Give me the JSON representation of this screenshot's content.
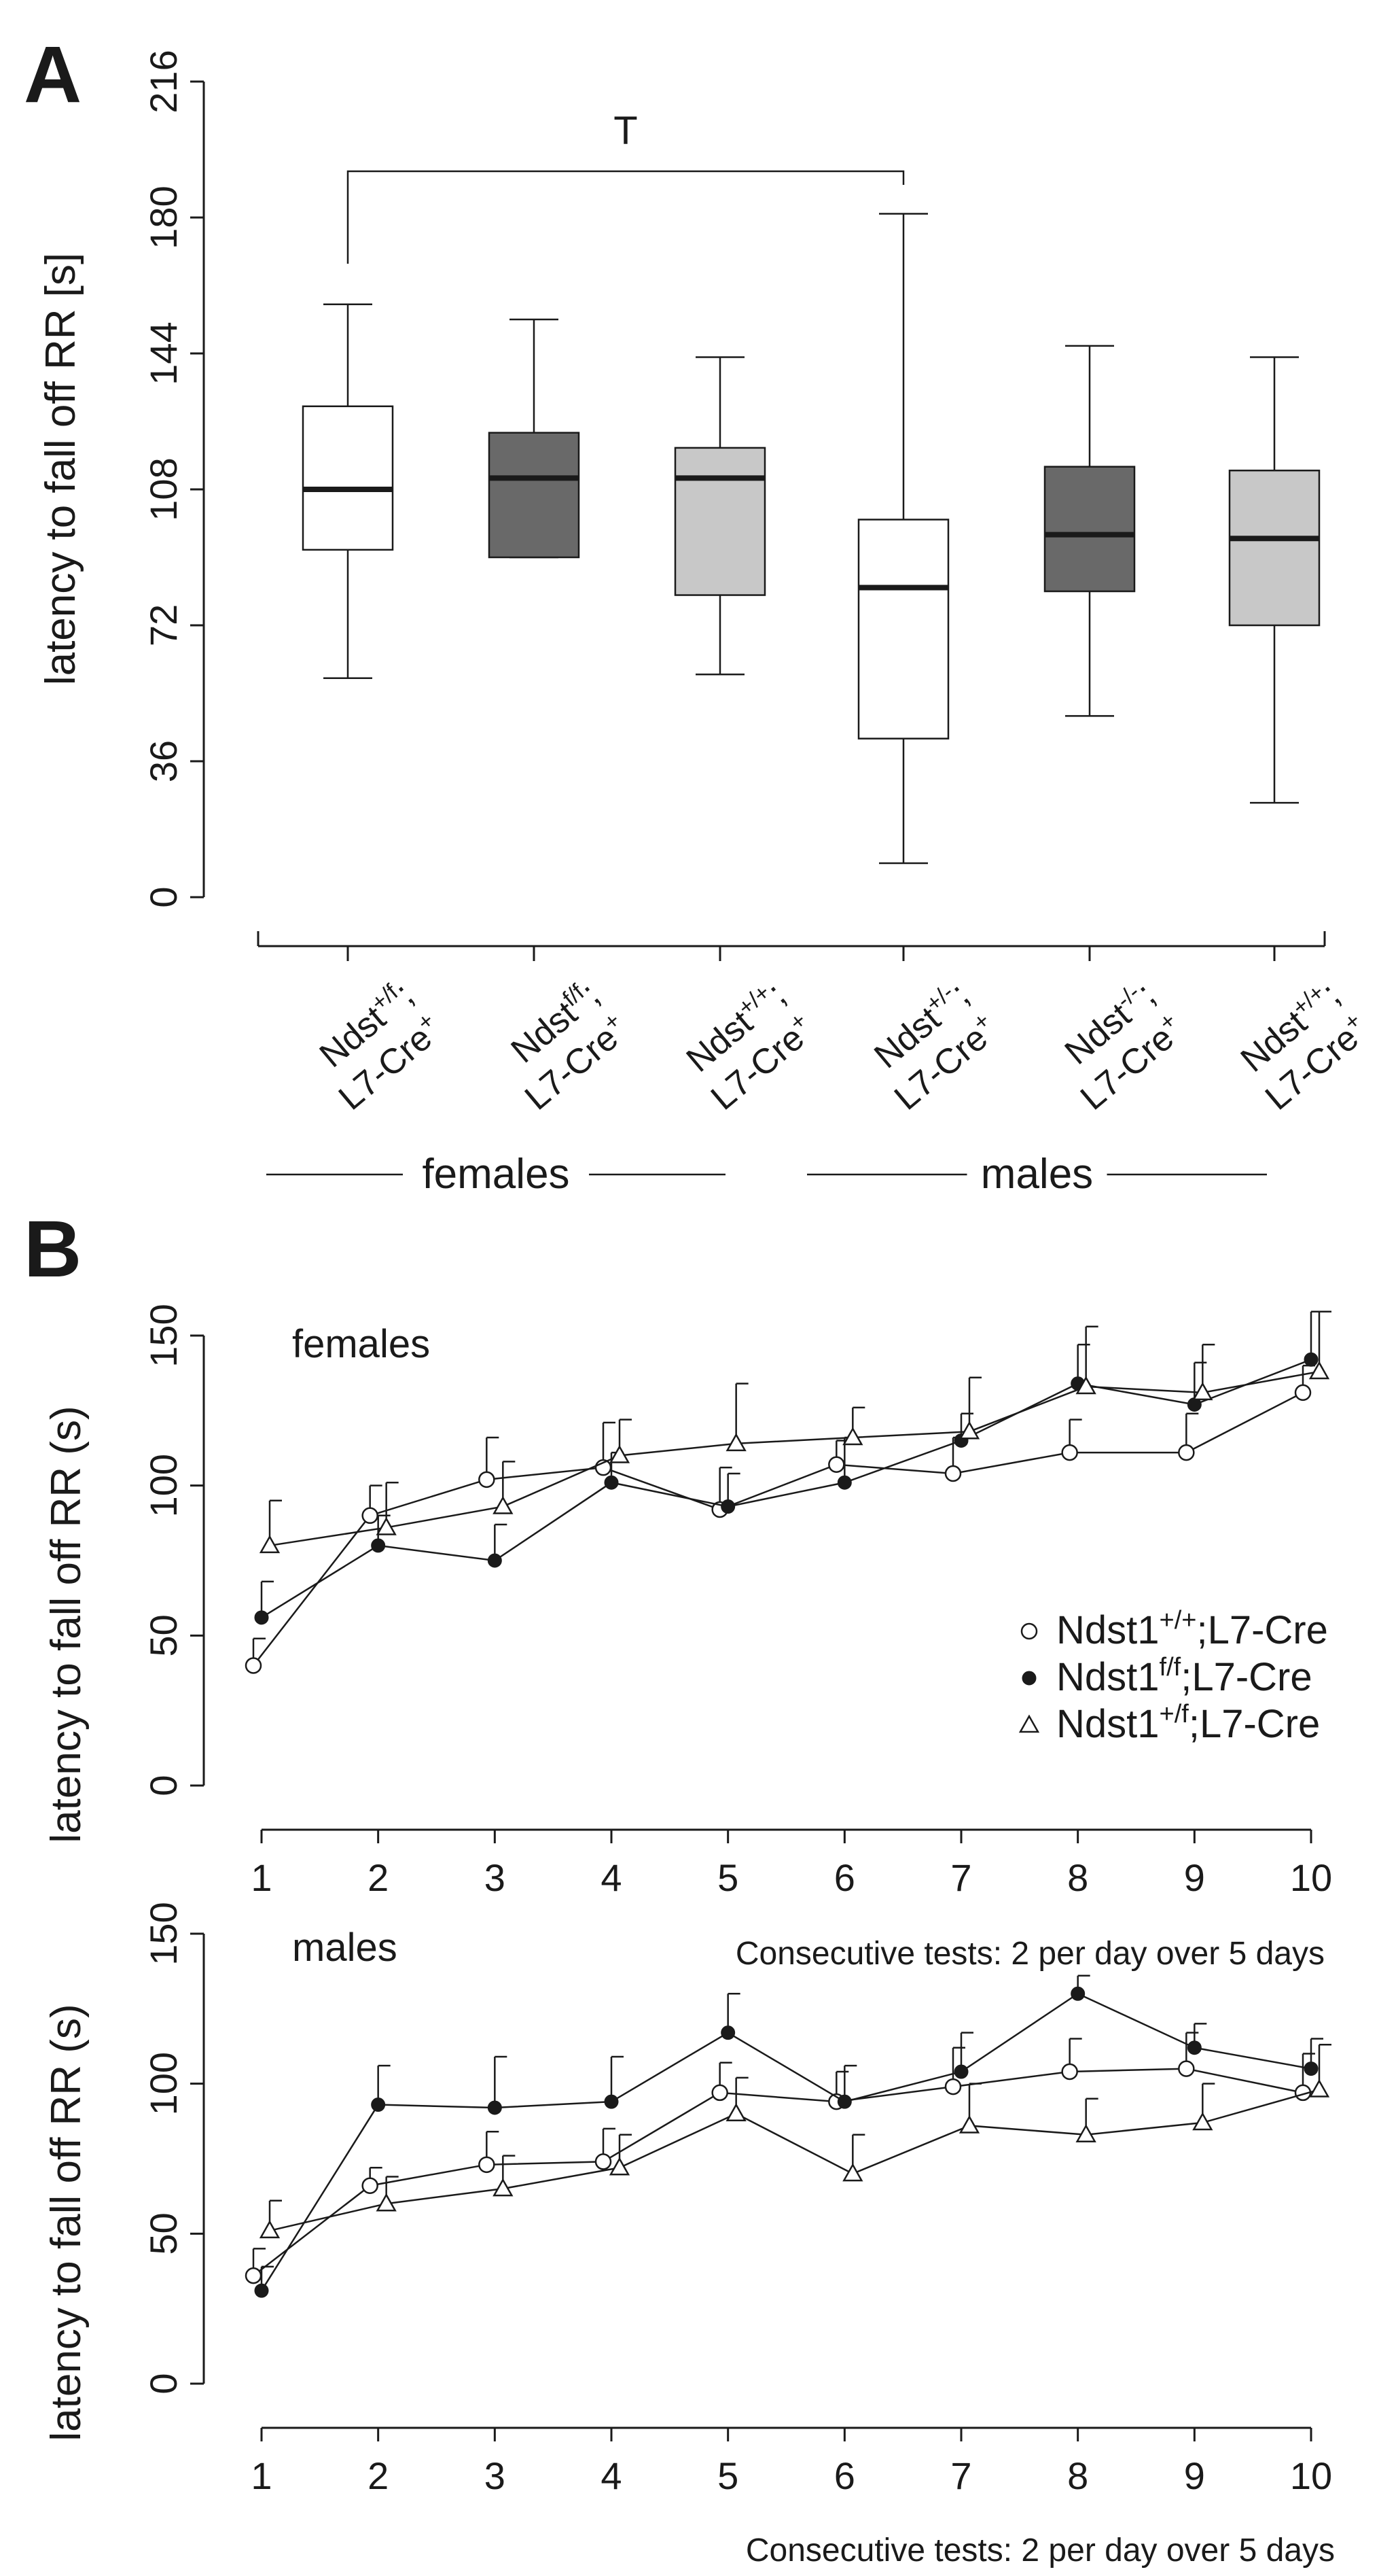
{
  "figure": {
    "panel_a_letter": "A",
    "panel_b_letter": "B"
  },
  "chart_data": [
    {
      "id": "panel-a",
      "type": "box",
      "ylabel": "latency to fall off RR [s]",
      "ylim": [
        0,
        216
      ],
      "yticks": [
        0,
        36,
        72,
        108,
        144,
        180,
        216
      ],
      "significance": {
        "label": "T",
        "between": [
          0,
          3
        ]
      },
      "groups": [
        {
          "label": "females",
          "members": [
            0,
            1,
            2
          ]
        },
        {
          "label": "males",
          "members": [
            3,
            4,
            5
          ]
        }
      ],
      "boxes": [
        {
          "line1_base": "Ndst",
          "line1_sup": "+/f",
          "line1_tail": ";",
          "line2_base": "L7-Cre",
          "line2_sup": "+",
          "fill": "#ffffff",
          "whisker_low": 58,
          "q1": 92,
          "median": 108,
          "q3": 130,
          "whisker_high": 157
        },
        {
          "line1_base": "Ndst",
          "line1_sup": "f/f",
          "line1_tail": ";",
          "line2_base": "L7-Cre",
          "line2_sup": "+",
          "fill": "#696969",
          "whisker_low": 90,
          "q1": 90,
          "median": 111,
          "q3": 123,
          "whisker_high": 153
        },
        {
          "line1_base": "Ndst",
          "line1_sup": "+/+",
          "line1_tail": ";",
          "line2_base": "L7-Cre",
          "line2_sup": "+",
          "fill": "#c8c8c8",
          "whisker_low": 59,
          "q1": 80,
          "median": 111,
          "q3": 119,
          "whisker_high": 143
        },
        {
          "line1_base": "Ndst",
          "line1_sup": "+/-",
          "line1_tail": ";",
          "line2_base": "L7-Cre",
          "line2_sup": "+",
          "fill": "#ffffff",
          "whisker_low": 9,
          "q1": 42,
          "median": 82,
          "q3": 100,
          "whisker_high": 181
        },
        {
          "line1_base": "Ndst",
          "line1_sup": "-/-",
          "line1_tail": ";",
          "line2_base": "L7-Cre",
          "line2_sup": "+",
          "fill": "#696969",
          "whisker_low": 48,
          "q1": 81,
          "median": 96,
          "q3": 114,
          "whisker_high": 146
        },
        {
          "line1_base": "Ndst",
          "line1_sup": "+/+",
          "line1_tail": ";",
          "line2_base": "L7-Cre",
          "line2_sup": "+",
          "fill": "#c8c8c8",
          "whisker_low": 25,
          "q1": 72,
          "median": 95,
          "q3": 113,
          "whisker_high": 143
        }
      ]
    },
    {
      "id": "panel-b-females",
      "type": "line",
      "title": "females",
      "xlabel": "Consecutive tests: 2 per day over 5 days",
      "ylabel": "latency to fall off RR (s)",
      "x": [
        1,
        2,
        3,
        4,
        5,
        6,
        7,
        8,
        9,
        10
      ],
      "ylim": [
        0,
        150
      ],
      "yticks": [
        0,
        50,
        100,
        150
      ],
      "series": [
        {
          "name_base": "Ndst1",
          "name_sup": "+/+",
          "name_tail": ";L7-Cre",
          "marker": "circle",
          "values": [
            40,
            90,
            102,
            106,
            92,
            107,
            104,
            111,
            111,
            131
          ],
          "errors": [
            9,
            10,
            14,
            15,
            14,
            8,
            12,
            11,
            13,
            9
          ]
        },
        {
          "name_base": "Ndst1",
          "name_sup": "f/f",
          "name_tail": ";L7-Cre",
          "marker": "filled",
          "values": [
            56,
            80,
            75,
            101,
            93,
            101,
            115,
            134,
            127,
            142
          ],
          "errors": [
            12,
            10,
            12,
            10,
            11,
            15,
            9,
            13,
            14,
            16
          ]
        },
        {
          "name_base": "Ndst1",
          "name_sup": "+/f",
          "name_tail": ";L7-Cre",
          "marker": "triangle",
          "values": [
            80,
            86,
            93,
            110,
            114,
            116,
            118,
            133,
            131,
            138
          ],
          "errors": [
            15,
            15,
            15,
            12,
            20,
            10,
            18,
            20,
            16,
            20
          ]
        }
      ]
    },
    {
      "id": "panel-b-males",
      "type": "line",
      "title": "males",
      "xlabel": "Consecutive tests: 2 per day over 5 days",
      "ylabel": "latency to fall off RR (s)",
      "x": [
        1,
        2,
        3,
        4,
        5,
        6,
        7,
        8,
        9,
        10
      ],
      "ylim": [
        0,
        150
      ],
      "yticks": [
        0,
        50,
        100,
        150
      ],
      "series": [
        {
          "name_base": "Ndst1",
          "name_sup": "+/+",
          "name_tail": ";L7-Cre",
          "marker": "circle",
          "values": [
            36,
            66,
            73,
            74,
            97,
            94,
            99,
            104,
            105,
            97
          ],
          "errors": [
            9,
            6,
            11,
            11,
            10,
            10,
            13,
            11,
            12,
            13
          ]
        },
        {
          "name_base": "Ndst1",
          "name_sup": "f/f",
          "name_tail": ";L7-Cre",
          "marker": "filled",
          "values": [
            31,
            93,
            92,
            94,
            117,
            94,
            104,
            130,
            112,
            105
          ],
          "errors": [
            8,
            13,
            17,
            15,
            13,
            12,
            13,
            6,
            8,
            10
          ]
        },
        {
          "name_base": "Ndst1",
          "name_sup": "+/f",
          "name_tail": ";L7-Cre",
          "marker": "triangle",
          "values": [
            51,
            60,
            65,
            72,
            90,
            70,
            86,
            83,
            87,
            98
          ],
          "errors": [
            10,
            9,
            11,
            11,
            12,
            13,
            14,
            12,
            13,
            15
          ]
        }
      ]
    }
  ]
}
